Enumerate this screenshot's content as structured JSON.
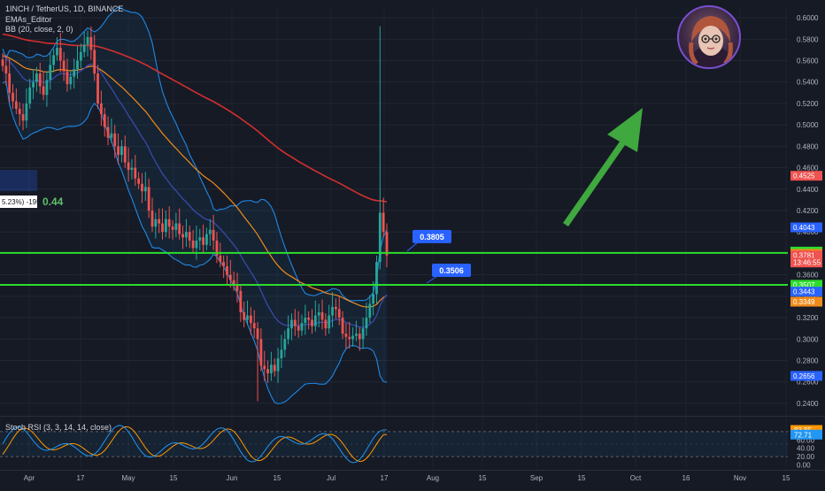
{
  "header": {
    "symbol_line": "1INCH / TetherUS, 1D, BINANCE",
    "ema_label": "EMAs_Editor",
    "bb_label": "BB (20, close, 2, 0)",
    "rsi_label": "Stoch RSI (3, 3, 14, 14, close)"
  },
  "position_box": {
    "text": "5.23%) -195",
    "value": "0.44"
  },
  "colors": {
    "background": "#161a25",
    "up": "#26a69a",
    "down": "#ef5350",
    "support_line": "#2ddc2d",
    "ema_200": "#d32f2f",
    "ema_50": "#ef8b1c",
    "bb_basis": "#3949ab",
    "bb_band": "#1e88e5",
    "arrow": "#3fa83f",
    "rsi_k": "#2196f3",
    "rsi_d": "#ff9800",
    "label_blue": "#2962ff"
  },
  "chart_data": {
    "type": "candlestick",
    "title": "1INCH / TetherUS, 1D, BINANCE",
    "y_axis_ticks": [
      "0.2400",
      "0.2600",
      "0.2800",
      "0.3000",
      "0.3200",
      "0.3400",
      "0.3600",
      "0.3800",
      "0.4000",
      "0.4200",
      "0.4400",
      "0.4600",
      "0.4800",
      "0.5000",
      "0.5200",
      "0.5400",
      "0.5600",
      "0.5800",
      "0.6000"
    ],
    "ylim": [
      0.23,
      0.61
    ],
    "x_axis_ticks": [
      "Apr",
      "17",
      "May",
      "15",
      "Jun",
      "15",
      "Jul",
      "17",
      "Aug",
      "15",
      "Sep",
      "15",
      "Oct",
      "16",
      "Nov",
      "15"
    ],
    "price_labels": [
      {
        "text": "0.4525",
        "value": 0.4525,
        "color": "#ef5350"
      },
      {
        "text": "0.4043",
        "value": 0.4043,
        "color": "#2962ff"
      },
      {
        "text": "0.3817",
        "value": 0.3817,
        "color": "#2ddc2d"
      },
      {
        "text": "0.3796",
        "value": 0.3796,
        "color": "#ef8b1c"
      },
      {
        "text": "0.3781",
        "value": 0.3781,
        "color": "#ef5350"
      },
      {
        "text": "13:46:55",
        "value": 0.3715,
        "color": "#ef5350"
      },
      {
        "text": "0.3507",
        "value": 0.3507,
        "color": "#2ddc2d"
      },
      {
        "text": "0.3443",
        "value": 0.3443,
        "color": "#2962ff"
      },
      {
        "text": "0.3349",
        "value": 0.3349,
        "color": "#ef8b1c"
      },
      {
        "text": "0.2656",
        "value": 0.2656,
        "color": "#2962ff"
      }
    ],
    "horizontal_levels": [
      {
        "value": 0.3805,
        "label": "0.3805"
      },
      {
        "value": 0.3506,
        "label": "0.3506"
      }
    ],
    "candles_close": [
      0.555,
      0.548,
      0.53,
      0.522,
      0.515,
      0.51,
      0.504,
      0.52,
      0.535,
      0.54,
      0.548,
      0.536,
      0.528,
      0.542,
      0.556,
      0.565,
      0.572,
      0.56,
      0.55,
      0.538,
      0.545,
      0.552,
      0.56,
      0.568,
      0.575,
      0.582,
      0.57,
      0.548,
      0.52,
      0.51,
      0.498,
      0.488,
      0.492,
      0.48,
      0.472,
      0.48,
      0.465,
      0.458,
      0.46,
      0.45,
      0.445,
      0.438,
      0.442,
      0.42,
      0.405,
      0.412,
      0.408,
      0.4,
      0.412,
      0.405,
      0.402,
      0.408,
      0.398,
      0.395,
      0.4,
      0.392,
      0.385,
      0.392,
      0.395,
      0.388,
      0.398,
      0.402,
      0.392,
      0.378,
      0.372,
      0.368,
      0.36,
      0.355,
      0.35,
      0.345,
      0.325,
      0.318,
      0.322,
      0.315,
      0.31,
      0.3,
      0.275,
      0.272,
      0.268,
      0.276,
      0.27,
      0.282,
      0.29,
      0.3,
      0.31,
      0.318,
      0.312,
      0.308,
      0.315,
      0.32,
      0.318,
      0.312,
      0.322,
      0.325,
      0.318,
      0.31,
      0.322,
      0.33,
      0.328,
      0.32,
      0.305,
      0.302,
      0.3,
      0.303,
      0.305,
      0.3,
      0.31,
      0.32,
      0.333,
      0.342,
      0.372,
      0.418,
      0.4,
      0.3781
    ],
    "bb_upper_ends": [
      0.565,
      0.4525
    ],
    "ema200_ends": [
      0.59,
      0.4525
    ],
    "stoch_rsi": {
      "y_ticks": [
        "0.00",
        "20.00",
        "40.00",
        "60.00"
      ],
      "k_last": 83.85,
      "d_last": 72.71,
      "ylim": [
        -5,
        105
      ]
    },
    "annotation": "green arrow pointing up"
  }
}
